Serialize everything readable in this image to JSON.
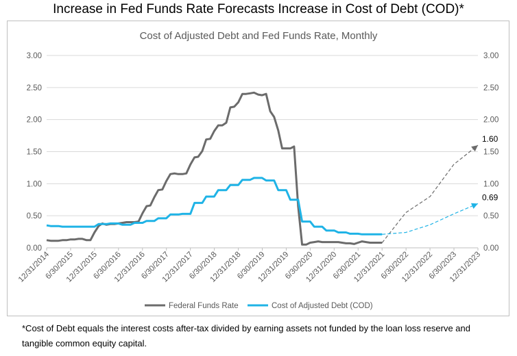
{
  "title": "Increase in Fed Funds Rate Forecasts Increase in Cost of Debt (COD)*",
  "footnote": "*Cost of Debt equals the interest costs after-tax divided by earning assets not funded by the loan loss reserve and tangible common equity capital.",
  "chart_data": {
    "type": "line",
    "title": "Cost of Adjusted Debt and Fed Funds Rate, Monthly",
    "ylim": [
      0,
      3
    ],
    "ytick_labels": [
      "0.00",
      "0.50",
      "1.00",
      "1.50",
      "2.00",
      "2.50",
      "3.00"
    ],
    "secondary_ytick_labels": [
      "0.00",
      "0.50",
      "1.00",
      "1.50",
      "2.00",
      "2.50",
      "3.00"
    ],
    "x_tick_labels": [
      "12/31/2014",
      "6/30/2015",
      "12/31/2015",
      "6/30/2016",
      "12/31/2016",
      "6/30/2017",
      "12/31/2017",
      "6/30/2018",
      "12/31/2018",
      "6/30/2019",
      "12/31/2019",
      "6/30/2020",
      "12/31/2020",
      "6/30/2021",
      "12/31/2021",
      "6/30/2022",
      "12/31/2022",
      "6/30/2023",
      "12/31/2023"
    ],
    "legend_position": "bottom",
    "grid": "horizontal",
    "series": [
      {
        "name": "Federal Funds Rate",
        "color": "#6b6b6b",
        "style": "solid",
        "points": [
          [
            "2014-12-31",
            0.12
          ],
          [
            "2015-01-31",
            0.11
          ],
          [
            "2015-02-28",
            0.11
          ],
          [
            "2015-03-31",
            0.11
          ],
          [
            "2015-04-30",
            0.12
          ],
          [
            "2015-05-31",
            0.12
          ],
          [
            "2015-06-30",
            0.13
          ],
          [
            "2015-07-31",
            0.13
          ],
          [
            "2015-08-31",
            0.14
          ],
          [
            "2015-09-30",
            0.14
          ],
          [
            "2015-10-31",
            0.12
          ],
          [
            "2015-11-30",
            0.12
          ],
          [
            "2015-12-31",
            0.24
          ],
          [
            "2016-01-31",
            0.34
          ],
          [
            "2016-02-29",
            0.38
          ],
          [
            "2016-03-31",
            0.36
          ],
          [
            "2016-04-30",
            0.37
          ],
          [
            "2016-05-31",
            0.37
          ],
          [
            "2016-06-30",
            0.38
          ],
          [
            "2016-07-31",
            0.39
          ],
          [
            "2016-08-31",
            0.4
          ],
          [
            "2016-09-30",
            0.4
          ],
          [
            "2016-10-31",
            0.4
          ],
          [
            "2016-11-30",
            0.41
          ],
          [
            "2016-12-31",
            0.54
          ],
          [
            "2017-01-31",
            0.65
          ],
          [
            "2017-02-28",
            0.66
          ],
          [
            "2017-03-31",
            0.79
          ],
          [
            "2017-04-30",
            0.9
          ],
          [
            "2017-05-31",
            0.91
          ],
          [
            "2017-06-30",
            1.04
          ],
          [
            "2017-07-31",
            1.15
          ],
          [
            "2017-08-31",
            1.16
          ],
          [
            "2017-09-30",
            1.15
          ],
          [
            "2017-10-31",
            1.15
          ],
          [
            "2017-11-30",
            1.16
          ],
          [
            "2017-12-31",
            1.3
          ],
          [
            "2018-01-31",
            1.41
          ],
          [
            "2018-02-28",
            1.42
          ],
          [
            "2018-03-31",
            1.51
          ],
          [
            "2018-04-30",
            1.69
          ],
          [
            "2018-05-31",
            1.7
          ],
          [
            "2018-06-30",
            1.82
          ],
          [
            "2018-07-31",
            1.91
          ],
          [
            "2018-08-31",
            1.91
          ],
          [
            "2018-09-30",
            1.95
          ],
          [
            "2018-10-31",
            2.19
          ],
          [
            "2018-11-30",
            2.2
          ],
          [
            "2018-12-31",
            2.27
          ],
          [
            "2019-01-31",
            2.4
          ],
          [
            "2019-02-28",
            2.4
          ],
          [
            "2019-03-31",
            2.41
          ],
          [
            "2019-04-30",
            2.42
          ],
          [
            "2019-05-31",
            2.39
          ],
          [
            "2019-06-30",
            2.38
          ],
          [
            "2019-07-31",
            2.4
          ],
          [
            "2019-08-31",
            2.13
          ],
          [
            "2019-09-30",
            2.04
          ],
          [
            "2019-10-31",
            1.83
          ],
          [
            "2019-11-30",
            1.55
          ],
          [
            "2019-12-31",
            1.55
          ],
          [
            "2020-01-31",
            1.55
          ],
          [
            "2020-02-29",
            1.58
          ],
          [
            "2020-03-31",
            0.65
          ],
          [
            "2020-04-30",
            0.05
          ],
          [
            "2020-05-31",
            0.05
          ],
          [
            "2020-06-30",
            0.08
          ],
          [
            "2020-07-31",
            0.09
          ],
          [
            "2020-08-31",
            0.1
          ],
          [
            "2020-09-30",
            0.09
          ],
          [
            "2020-10-31",
            0.09
          ],
          [
            "2020-11-30",
            0.09
          ],
          [
            "2020-12-31",
            0.09
          ],
          [
            "2021-01-31",
            0.09
          ],
          [
            "2021-02-28",
            0.08
          ],
          [
            "2021-03-31",
            0.07
          ],
          [
            "2021-04-30",
            0.07
          ],
          [
            "2021-05-31",
            0.06
          ],
          [
            "2021-06-30",
            0.08
          ],
          [
            "2021-07-31",
            0.1
          ],
          [
            "2021-08-31",
            0.09
          ],
          [
            "2021-09-30",
            0.08
          ],
          [
            "2021-10-31",
            0.08
          ],
          [
            "2021-11-30",
            0.08
          ],
          [
            "2021-12-31",
            0.08
          ]
        ]
      },
      {
        "name": "Cost of Adjusted Debt (COD)",
        "color": "#1fb3e6",
        "style": "solid",
        "points": [
          [
            "2014-12-31",
            0.35
          ],
          [
            "2015-01-31",
            0.34
          ],
          [
            "2015-02-28",
            0.34
          ],
          [
            "2015-03-31",
            0.34
          ],
          [
            "2015-04-30",
            0.33
          ],
          [
            "2015-05-31",
            0.33
          ],
          [
            "2015-06-30",
            0.33
          ],
          [
            "2015-07-31",
            0.33
          ],
          [
            "2015-08-31",
            0.33
          ],
          [
            "2015-09-30",
            0.33
          ],
          [
            "2015-10-31",
            0.33
          ],
          [
            "2015-11-30",
            0.33
          ],
          [
            "2015-12-31",
            0.33
          ],
          [
            "2016-01-31",
            0.37
          ],
          [
            "2016-02-29",
            0.37
          ],
          [
            "2016-03-31",
            0.37
          ],
          [
            "2016-04-30",
            0.38
          ],
          [
            "2016-05-31",
            0.38
          ],
          [
            "2016-06-30",
            0.38
          ],
          [
            "2016-07-31",
            0.36
          ],
          [
            "2016-08-31",
            0.36
          ],
          [
            "2016-09-30",
            0.36
          ],
          [
            "2016-10-31",
            0.39
          ],
          [
            "2016-11-30",
            0.39
          ],
          [
            "2016-12-31",
            0.39
          ],
          [
            "2017-01-31",
            0.42
          ],
          [
            "2017-02-28",
            0.42
          ],
          [
            "2017-03-31",
            0.42
          ],
          [
            "2017-04-30",
            0.46
          ],
          [
            "2017-05-31",
            0.46
          ],
          [
            "2017-06-30",
            0.46
          ],
          [
            "2017-07-31",
            0.52
          ],
          [
            "2017-08-31",
            0.52
          ],
          [
            "2017-09-30",
            0.52
          ],
          [
            "2017-10-31",
            0.53
          ],
          [
            "2017-11-30",
            0.53
          ],
          [
            "2017-12-31",
            0.53
          ],
          [
            "2018-01-31",
            0.7
          ],
          [
            "2018-02-28",
            0.7
          ],
          [
            "2018-03-31",
            0.7
          ],
          [
            "2018-04-30",
            0.8
          ],
          [
            "2018-05-31",
            0.8
          ],
          [
            "2018-06-30",
            0.8
          ],
          [
            "2018-07-31",
            0.9
          ],
          [
            "2018-08-31",
            0.9
          ],
          [
            "2018-09-30",
            0.9
          ],
          [
            "2018-10-31",
            0.98
          ],
          [
            "2018-11-30",
            0.98
          ],
          [
            "2018-12-31",
            0.98
          ],
          [
            "2019-01-31",
            1.06
          ],
          [
            "2019-02-28",
            1.06
          ],
          [
            "2019-03-31",
            1.06
          ],
          [
            "2019-04-30",
            1.09
          ],
          [
            "2019-05-31",
            1.09
          ],
          [
            "2019-06-30",
            1.09
          ],
          [
            "2019-07-31",
            1.05
          ],
          [
            "2019-08-31",
            1.05
          ],
          [
            "2019-09-30",
            1.05
          ],
          [
            "2019-10-31",
            0.9
          ],
          [
            "2019-11-30",
            0.9
          ],
          [
            "2019-12-31",
            0.9
          ],
          [
            "2020-01-31",
            0.75
          ],
          [
            "2020-02-29",
            0.75
          ],
          [
            "2020-03-31",
            0.75
          ],
          [
            "2020-04-30",
            0.41
          ],
          [
            "2020-05-31",
            0.41
          ],
          [
            "2020-06-30",
            0.41
          ],
          [
            "2020-07-31",
            0.33
          ],
          [
            "2020-08-31",
            0.33
          ],
          [
            "2020-09-30",
            0.33
          ],
          [
            "2020-10-31",
            0.27
          ],
          [
            "2020-11-30",
            0.27
          ],
          [
            "2020-12-31",
            0.27
          ],
          [
            "2021-01-31",
            0.24
          ],
          [
            "2021-02-28",
            0.24
          ],
          [
            "2021-03-31",
            0.24
          ],
          [
            "2021-04-30",
            0.22
          ],
          [
            "2021-05-31",
            0.22
          ],
          [
            "2021-06-30",
            0.22
          ],
          [
            "2021-07-31",
            0.21
          ],
          [
            "2021-08-31",
            0.21
          ],
          [
            "2021-09-30",
            0.21
          ],
          [
            "2021-10-31",
            0.21
          ],
          [
            "2021-11-30",
            0.21
          ],
          [
            "2021-12-31",
            0.21
          ]
        ]
      }
    ],
    "forecasts": [
      {
        "of": "Federal Funds Rate",
        "color": "#6b6b6b",
        "style": "dashed",
        "points": [
          [
            "2021-12-31",
            0.08
          ],
          [
            "2022-06-30",
            0.55
          ],
          [
            "2022-12-31",
            0.8
          ],
          [
            "2023-06-30",
            1.3
          ],
          [
            "2023-12-31",
            1.6
          ]
        ],
        "end_label": "1.60"
      },
      {
        "of": "Cost of Adjusted Debt (COD)",
        "color": "#1fb3e6",
        "style": "dashed",
        "points": [
          [
            "2021-12-31",
            0.21
          ],
          [
            "2022-06-30",
            0.24
          ],
          [
            "2022-12-31",
            0.36
          ],
          [
            "2023-06-30",
            0.53
          ],
          [
            "2023-12-31",
            0.69
          ]
        ],
        "end_label": "0.69"
      }
    ]
  }
}
